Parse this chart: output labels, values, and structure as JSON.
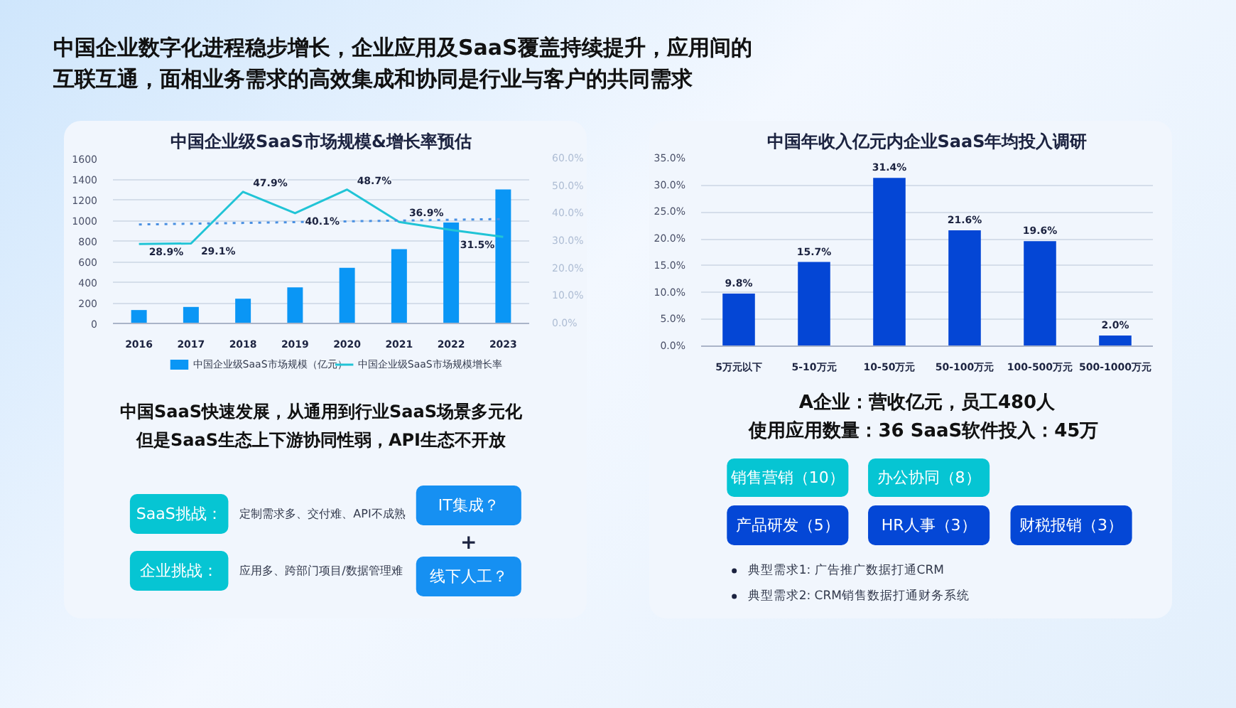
{
  "chart_data": [
    {
      "type": "other",
      "title": "中国企业数字化进程稳步增长，企业应用及SaaS覆盖持续提升，应用间的互联互通，面相业务需求的高效集成和协同是行业与客户的共同需求"
    },
    {
      "type": "bar",
      "title": "中国企业级SaaS市场规模&增长率预估",
      "x": [
        2016,
        2017,
        2018,
        2019,
        2020,
        2021,
        2022,
        2023
      ],
      "xlim": [
        2015.5,
        2023.5
      ],
      "xticks": [
        2016,
        2017,
        2018,
        2019,
        2020,
        2021,
        2022,
        2023
      ],
      "ylim": [
        0,
        1600
      ],
      "yticks": [
        0,
        200,
        400,
        600,
        800,
        1000,
        1200,
        1400,
        1600
      ],
      "y2lim": [
        0,
        60
      ],
      "y2ticks": [
        {
          "value": 0,
          "label": "0.0%"
        },
        {
          "value": 10,
          "label": "10.0%"
        },
        {
          "value": 20,
          "label": "20.0%"
        },
        {
          "value": 30,
          "label": "30.0%"
        },
        {
          "value": 40,
          "label": "40.0%"
        },
        {
          "value": 50,
          "label": "50.0%"
        },
        {
          "value": 60,
          "label": "60.0%"
        }
      ],
      "grid": "y",
      "legend": "bottom",
      "series": [
        {
          "name": "中国企业级SaaS市场规模（亿元）",
          "type": "bar",
          "color": "#0a96f5",
          "values": [
            130,
            160,
            240,
            350,
            540,
            720,
            980,
            1300
          ]
        },
        {
          "name": "中国企业级SaaS市场规模增长率",
          "type": "line",
          "axis": "y2",
          "color": "#21c4d6",
          "values": [
            28.9,
            29.1,
            47.9,
            40.1,
            48.7,
            36.9,
            34,
            31.5
          ],
          "value_labels": [
            "28.9%",
            "29.1%",
            "47.9%",
            "40.1%",
            "48.7%",
            "36.9%",
            null,
            "31.5%"
          ]
        },
        {
          "type": "line",
          "axis": "y2",
          "x": [
            2016,
            2023
          ],
          "values": [
            36,
            38
          ],
          "color": "#4a90e2",
          "line_style": "dotted"
        }
      ],
      "annotations": [
        "中国SaaS快速发展，从通用到行业SaaS场景多元化",
        "但是SaaS生态上下游协同性弱，API生态不开放",
        "SaaS挑战：",
        "定制需求多、交付难、API不成熟",
        "企业挑战：",
        "应用多、跨部门项目/数据管理难",
        "IT集成？",
        "+",
        "线下人工？"
      ]
    },
    {
      "type": "bar",
      "title": "中国年收入亿元内企业SaaS年均投入调研",
      "categories": [
        "5万元以下",
        "5-10万元",
        "10-50万元",
        "50-100万元",
        "100-500万元",
        "500-1000万元"
      ],
      "values": [
        9.8,
        15.7,
        31.4,
        21.6,
        19.6,
        2.0
      ],
      "value_labels": [
        "9.8%",
        "15.7%",
        "31.4%",
        "21.6%",
        "19.6%",
        "2.0%"
      ],
      "color": "#0446d5",
      "ylim": [
        0,
        35
      ],
      "yticks": [
        {
          "value": 0,
          "label": "0.0%"
        },
        {
          "value": 5,
          "label": "5.0%"
        },
        {
          "value": 10,
          "label": "10.0%"
        },
        {
          "value": 15,
          "label": "15.0%"
        },
        {
          "value": 20,
          "label": "20.0%"
        },
        {
          "value": 25,
          "label": "25.0%"
        },
        {
          "value": 30,
          "label": "30.0%"
        },
        {
          "value": 35,
          "label": "35.0%"
        }
      ],
      "grid": "y",
      "annotations": [
        "A企业：营收亿元，员工480人",
        "使用应用数量：36  SaaS软件投入：45万",
        "销售营销（10）",
        "办公协同（8）",
        "产品研发（5）",
        "HR人事（3）",
        "财税报销（3）",
        "典型需求1: 广告推广数据打通CRM",
        "典型需求2: CRM销售数据打通财务系统"
      ]
    }
  ]
}
